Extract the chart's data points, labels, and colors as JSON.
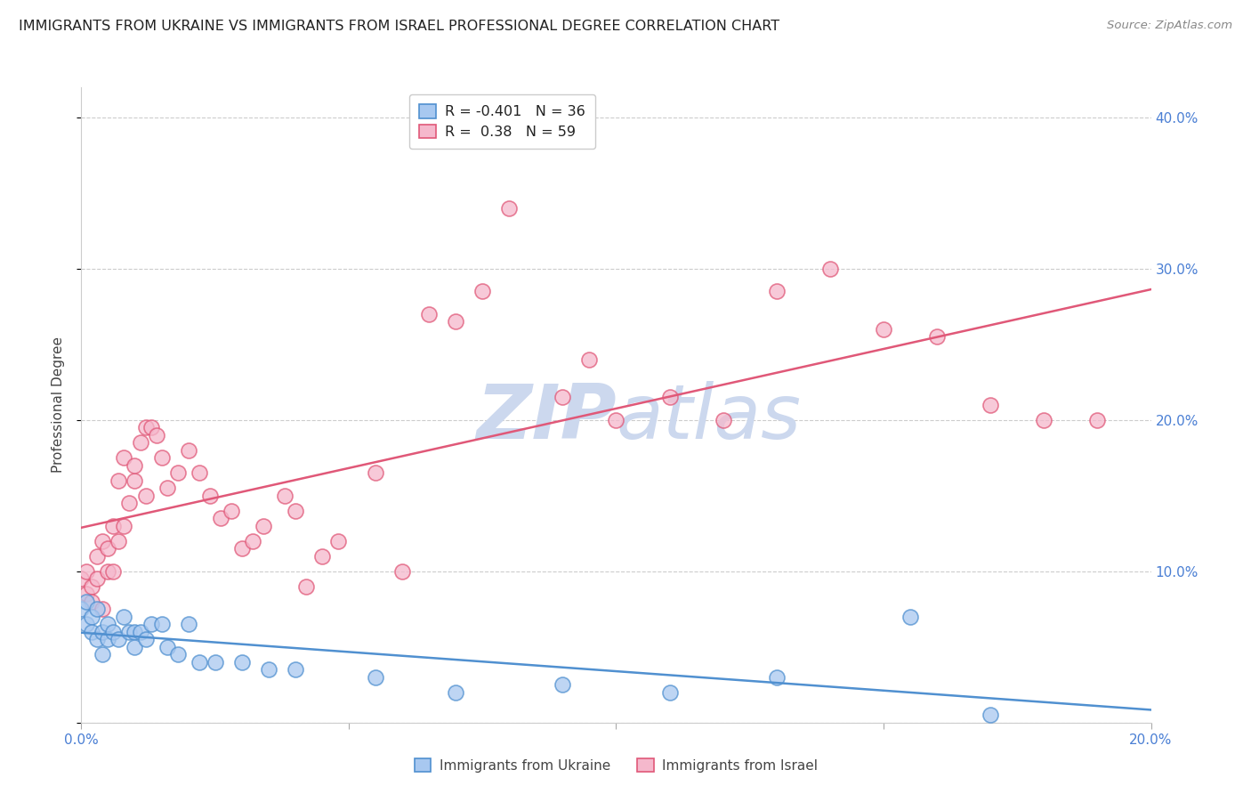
{
  "title": "IMMIGRANTS FROM UKRAINE VS IMMIGRANTS FROM ISRAEL PROFESSIONAL DEGREE CORRELATION CHART",
  "source": "Source: ZipAtlas.com",
  "ylabel": "Professional Degree",
  "legend_ukraine": "Immigrants from Ukraine",
  "legend_israel": "Immigrants from Israel",
  "R_ukraine": -0.401,
  "N_ukraine": 36,
  "R_israel": 0.38,
  "N_israel": 59,
  "xlim": [
    0.0,
    0.2
  ],
  "ylim": [
    0.0,
    0.42
  ],
  "color_ukraine": "#a8c8f0",
  "color_israel": "#f5b8cc",
  "line_color_ukraine": "#5090d0",
  "line_color_israel": "#e05878",
  "ukraine_x": [
    0.0,
    0.001,
    0.001,
    0.002,
    0.002,
    0.003,
    0.003,
    0.004,
    0.004,
    0.005,
    0.005,
    0.006,
    0.007,
    0.008,
    0.009,
    0.01,
    0.01,
    0.011,
    0.012,
    0.013,
    0.015,
    0.016,
    0.018,
    0.02,
    0.022,
    0.025,
    0.03,
    0.035,
    0.04,
    0.055,
    0.07,
    0.09,
    0.11,
    0.13,
    0.155,
    0.17
  ],
  "ukraine_y": [
    0.075,
    0.08,
    0.065,
    0.07,
    0.06,
    0.075,
    0.055,
    0.06,
    0.045,
    0.065,
    0.055,
    0.06,
    0.055,
    0.07,
    0.06,
    0.06,
    0.05,
    0.06,
    0.055,
    0.065,
    0.065,
    0.05,
    0.045,
    0.065,
    0.04,
    0.04,
    0.04,
    0.035,
    0.035,
    0.03,
    0.02,
    0.025,
    0.02,
    0.03,
    0.07,
    0.005
  ],
  "israel_x": [
    0.0,
    0.001,
    0.001,
    0.002,
    0.002,
    0.003,
    0.003,
    0.004,
    0.004,
    0.005,
    0.005,
    0.006,
    0.006,
    0.007,
    0.007,
    0.008,
    0.008,
    0.009,
    0.01,
    0.01,
    0.011,
    0.012,
    0.012,
    0.013,
    0.014,
    0.015,
    0.016,
    0.018,
    0.02,
    0.022,
    0.024,
    0.026,
    0.028,
    0.03,
    0.032,
    0.034,
    0.038,
    0.04,
    0.042,
    0.045,
    0.048,
    0.055,
    0.06,
    0.065,
    0.07,
    0.075,
    0.08,
    0.09,
    0.095,
    0.1,
    0.11,
    0.12,
    0.13,
    0.14,
    0.15,
    0.16,
    0.17,
    0.18,
    0.19
  ],
  "israel_y": [
    0.095,
    0.085,
    0.1,
    0.09,
    0.08,
    0.095,
    0.11,
    0.075,
    0.12,
    0.1,
    0.115,
    0.13,
    0.1,
    0.16,
    0.12,
    0.175,
    0.13,
    0.145,
    0.16,
    0.17,
    0.185,
    0.195,
    0.15,
    0.195,
    0.19,
    0.175,
    0.155,
    0.165,
    0.18,
    0.165,
    0.15,
    0.135,
    0.14,
    0.115,
    0.12,
    0.13,
    0.15,
    0.14,
    0.09,
    0.11,
    0.12,
    0.165,
    0.1,
    0.27,
    0.265,
    0.285,
    0.34,
    0.215,
    0.24,
    0.2,
    0.215,
    0.2,
    0.285,
    0.3,
    0.26,
    0.255,
    0.21,
    0.2,
    0.2
  ],
  "background_color": "#ffffff",
  "watermark_color": "#ccd8ee",
  "title_fontsize": 11.5,
  "source_fontsize": 9.5,
  "ylabel_color": "#444444",
  "tick_label_color": "#4a7fd4",
  "grid_color": "#cccccc",
  "title_color": "#222222"
}
